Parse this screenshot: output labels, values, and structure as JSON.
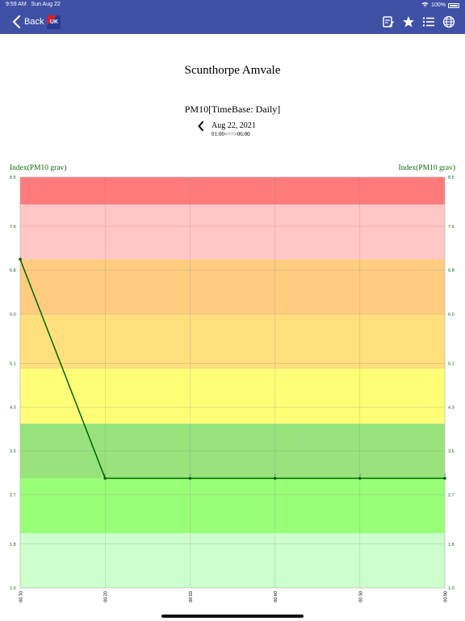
{
  "status": {
    "time": "9:59 AM",
    "date": "Sun Aug 22",
    "battery": "100%"
  },
  "nav": {
    "back_label": "Back",
    "logo_text": "UK",
    "icons": [
      "edit-note-icon",
      "star-icon",
      "list-icon",
      "globe-icon"
    ]
  },
  "page": {
    "station": "Scunthorpe Amvale",
    "subtitle": "PM10[TimeBase: Daily]",
    "date": "Aug 22, 2021",
    "range": "01:00<==>06:00"
  },
  "chart_data": {
    "type": "line",
    "ylabel": "Index(PM10 grav)",
    "y_ticks": [
      "1.0",
      "1.8",
      "2.7",
      "3.5",
      "4.3",
      "5.1",
      "6.0",
      "6.8",
      "7.6",
      "8.5"
    ],
    "ylim": [
      1.0,
      8.5
    ],
    "x_ticks": [
      "01:00",
      "02:00",
      "03:00",
      "04:00",
      "05:00",
      "06:00"
    ],
    "series": [
      {
        "values": [
          7.0,
          3.0,
          3.0,
          3.0,
          3.0,
          3.0
        ],
        "point_labels": [
          "",
          "3",
          "3",
          "3",
          "3",
          "3"
        ],
        "color": "#006400"
      }
    ],
    "bands": [
      {
        "from": 1.0,
        "to": 2.0,
        "color": "#ccffcc"
      },
      {
        "from": 2.0,
        "to": 3.0,
        "color": "#99ff77"
      },
      {
        "from": 3.0,
        "to": 4.0,
        "color": "#99e37d"
      },
      {
        "from": 4.0,
        "to": 5.0,
        "color": "#ffff77"
      },
      {
        "from": 5.0,
        "to": 6.0,
        "color": "#ffe07d"
      },
      {
        "from": 6.0,
        "to": 7.0,
        "color": "#ffcc80"
      },
      {
        "from": 7.0,
        "to": 8.0,
        "color": "#ffc6c6"
      },
      {
        "from": 8.0,
        "to": 8.5,
        "color": "#ff7b7b"
      }
    ],
    "grid": true
  }
}
